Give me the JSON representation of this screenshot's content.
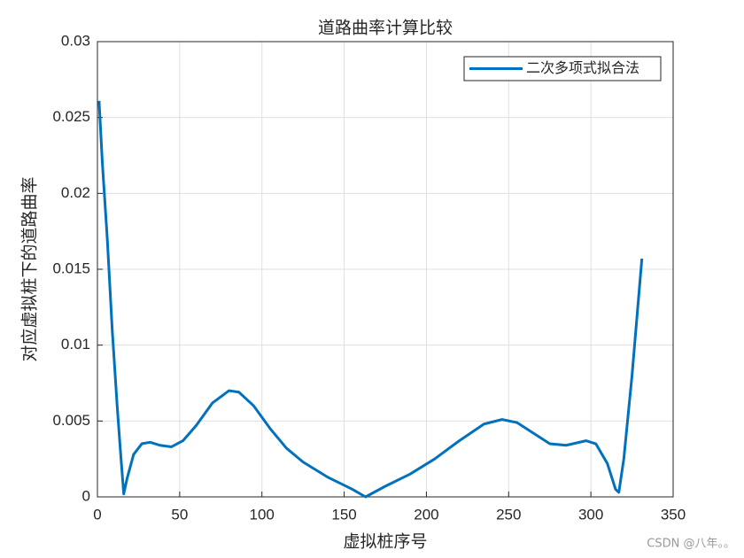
{
  "chart_data": {
    "type": "line",
    "title": "道路曲率计算比较",
    "x_label": "虚拟桩序号",
    "y_label": "对应虚拟桩下的道路曲率",
    "x": [
      1,
      3,
      6,
      9,
      12,
      14,
      16,
      18,
      22,
      27,
      32,
      38,
      45,
      52,
      60,
      70,
      80,
      86,
      95,
      105,
      115,
      125,
      140,
      155,
      163,
      175,
      190,
      205,
      220,
      235,
      246,
      255,
      265,
      275,
      285,
      297,
      303,
      310,
      315,
      317,
      320,
      325,
      331
    ],
    "series": [
      {
        "name": "二次多项式拟合法",
        "color": "#0072bd",
        "values": [
          0.0261,
          0.022,
          0.017,
          0.011,
          0.006,
          0.003,
          0.0002,
          0.0012,
          0.0028,
          0.0035,
          0.0036,
          0.0034,
          0.0033,
          0.0037,
          0.0047,
          0.0062,
          0.007,
          0.0069,
          0.006,
          0.0045,
          0.0032,
          0.0023,
          0.0013,
          0.0005,
          0,
          0.0007,
          0.0015,
          0.0025,
          0.0037,
          0.0048,
          0.0051,
          0.0049,
          0.0042,
          0.0035,
          0.0034,
          0.0037,
          0.0035,
          0.0022,
          0.0005,
          0.0003,
          0.0025,
          0.008,
          0.0157
        ]
      }
    ],
    "xlim": [
      0,
      350
    ],
    "xticks": [
      0,
      50,
      100,
      150,
      200,
      250,
      300,
      350
    ],
    "ylim": [
      0,
      0.03
    ],
    "yticks": [
      0,
      0.005,
      0.01,
      0.015,
      0.02,
      0.025,
      0.03
    ],
    "grid": true,
    "legend_position": "upper right",
    "watermark": "CSDN @八年。。"
  }
}
